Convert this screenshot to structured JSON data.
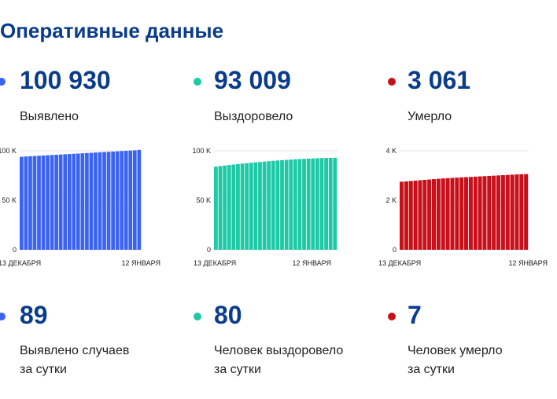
{
  "title": "Оперативные данные",
  "stats": [
    {
      "value": "100 930",
      "label": "Выявлено",
      "color": "#3b63f2"
    },
    {
      "value": "93 009",
      "label": "Выздоровело",
      "color": "#1ec9a6"
    },
    {
      "value": "3 061",
      "label": "Умерло",
      "color": "#c8101a"
    }
  ],
  "daily": [
    {
      "value": "89",
      "label_1": "Выявлено случаев",
      "label_2": "за сутки",
      "color": "#3b63f2"
    },
    {
      "value": "80",
      "label_1": "Человек выздоровело",
      "label_2": "за сутки",
      "color": "#1ec9a6"
    },
    {
      "value": "7",
      "label_1": "Человек умерло",
      "label_2": "за сутки",
      "color": "#c8101a"
    }
  ],
  "chart_data": [
    {
      "type": "bar",
      "color": "#3b63f2",
      "x_start": "13 ДЕКАБРЯ",
      "x_end": "12 ЯНВАРЯ",
      "y_ticks": [
        "0",
        "50 K",
        "100 K"
      ],
      "ylim": [
        0,
        100000
      ],
      "values": [
        94000,
        94250,
        94500,
        94750,
        95000,
        95250,
        95500,
        95750,
        96000,
        96250,
        96500,
        96750,
        97000,
        97250,
        97500,
        97750,
        98000,
        98250,
        98500,
        98750,
        99000,
        99250,
        99500,
        99750,
        100000,
        100250,
        100500,
        100930
      ],
      "grid": true
    },
    {
      "type": "bar",
      "color": "#1ec9a6",
      "x_start": "13 ДЕКАБРЯ",
      "x_end": "12 ЯНВАРЯ",
      "y_ticks": [
        "0",
        "50 K",
        "100 K"
      ],
      "ylim": [
        0,
        100000
      ],
      "values": [
        84000,
        84600,
        85100,
        85600,
        86100,
        86600,
        87100,
        87500,
        87900,
        88300,
        88700,
        89100,
        89500,
        89900,
        90200,
        90500,
        90800,
        91100,
        91400,
        91700,
        91900,
        92100,
        92300,
        92500,
        92650,
        92800,
        92900,
        93009
      ],
      "grid": true
    },
    {
      "type": "bar",
      "color": "#c8101a",
      "x_start": "13 ДЕКАБРЯ",
      "x_end": "12 ЯНВАРЯ",
      "y_ticks": [
        "0",
        "2 K",
        "4 K"
      ],
      "ylim": [
        0,
        4000
      ],
      "values": [
        2750,
        2765,
        2780,
        2795,
        2810,
        2825,
        2840,
        2855,
        2870,
        2885,
        2895,
        2905,
        2915,
        2925,
        2935,
        2945,
        2955,
        2965,
        2975,
        2985,
        2995,
        3005,
        3015,
        3025,
        3035,
        3045,
        3053,
        3061
      ],
      "grid": true
    }
  ]
}
